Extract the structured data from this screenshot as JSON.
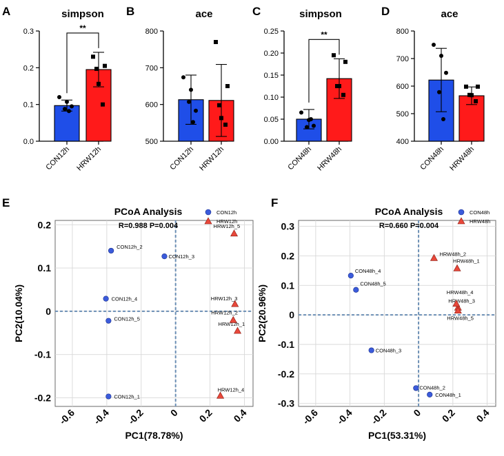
{
  "chart_data": [
    {
      "panel": "A",
      "type": "bar",
      "title": "simpson",
      "categories": [
        "CON12h",
        "HRW12h"
      ],
      "values": [
        0.097,
        0.195
      ],
      "errors": [
        0.015,
        0.047
      ],
      "points": [
        [
          0.12,
          0.107,
          0.095,
          0.088,
          0.082
        ],
        [
          0.23,
          0.205,
          0.197,
          0.156,
          0.1
        ]
      ],
      "colors": [
        "#1f4ee8",
        "#ff1a1a"
      ],
      "ylim": [
        0.0,
        0.3
      ],
      "yticks": [
        0.0,
        0.1,
        0.2,
        0.3
      ],
      "tick_labels": [
        "0.0",
        "0.1",
        "0.2",
        "0.3"
      ],
      "significance": "**"
    },
    {
      "panel": "B",
      "type": "bar",
      "title": "ace",
      "categories": [
        "CON12h",
        "HRW12h"
      ],
      "values": [
        613,
        611
      ],
      "errors": [
        67,
        98
      ],
      "points": [
        [
          674,
          640,
          583,
          607,
          552
        ],
        [
          770,
          650,
          598,
          563,
          545
        ]
      ],
      "colors": [
        "#1f4ee8",
        "#ff1a1a"
      ],
      "ylim": [
        500,
        800
      ],
      "yticks": [
        500,
        600,
        700,
        800
      ],
      "tick_labels": [
        "500",
        "600",
        "700",
        "800"
      ],
      "significance": ""
    },
    {
      "panel": "C",
      "type": "bar",
      "title": "simpson",
      "categories": [
        "CON48h",
        "HRW48h"
      ],
      "values": [
        0.05,
        0.142
      ],
      "errors": [
        0.022,
        0.045
      ],
      "points": [
        [
          0.065,
          0.048,
          0.035,
          0.032,
          0.05
        ],
        [
          0.195,
          0.18,
          0.125,
          0.125,
          0.105
        ]
      ],
      "colors": [
        "#1f4ee8",
        "#ff1a1a"
      ],
      "ylim": [
        0.0,
        0.25
      ],
      "yticks": [
        0.0,
        0.05,
        0.1,
        0.15,
        0.2,
        0.25
      ],
      "tick_labels": [
        "0.00",
        "0.05",
        "0.10",
        "0.15",
        "0.20",
        "0.25"
      ],
      "significance": "**"
    },
    {
      "panel": "D",
      "type": "bar",
      "title": "ace",
      "categories": [
        "CON48h",
        "HRW48h"
      ],
      "values": [
        622,
        565
      ],
      "errors": [
        115,
        32
      ],
      "points": [
        [
          750,
          710,
          648,
          578,
          480
        ],
        [
          598,
          598,
          568,
          567,
          545
        ]
      ],
      "colors": [
        "#1f4ee8",
        "#ff1a1a"
      ],
      "ylim": [
        400,
        800
      ],
      "yticks": [
        400,
        500,
        600,
        700,
        800
      ],
      "tick_labels": [
        "400",
        "500",
        "600",
        "700",
        "800"
      ],
      "significance": ""
    },
    {
      "panel": "E",
      "type": "scatter",
      "title": "PCoA Analysis",
      "stats": "R=0.988      P=0.004",
      "xlabel": "PC1(78.78%)",
      "ylabel": "PC2(10.04%)",
      "xlim": [
        -0.7,
        0.45
      ],
      "ylim": [
        -0.22,
        0.21
      ],
      "xticks": [
        -0.6,
        -0.4,
        -0.2,
        0,
        0.2,
        0.4
      ],
      "xtick_labels": [
        "-0.6",
        "-0.4",
        "-0.2",
        "0",
        "0.2",
        "0.4"
      ],
      "yticks": [
        -0.2,
        -0.1,
        0,
        0.1,
        0.2
      ],
      "ytick_labels": [
        "-0.2",
        "-0.1",
        "0",
        "0.1",
        "0.2"
      ],
      "series": [
        {
          "name": "CON12h",
          "marker": "circle",
          "color": "#3b5bdb",
          "points": [
            {
              "label": "CON12h_1",
              "x": -0.39,
              "y": -0.197
            },
            {
              "label": "CON12h_2",
              "x": -0.375,
              "y": 0.14
            },
            {
              "label": "CON12h_3",
              "x": -0.065,
              "y": 0.127
            },
            {
              "label": "CON12h_4",
              "x": -0.405,
              "y": 0.029
            },
            {
              "label": "CON12h_5",
              "x": -0.39,
              "y": -0.022
            }
          ]
        },
        {
          "name": "HRW12h",
          "marker": "triangle",
          "color": "#e8483b",
          "points": [
            {
              "label": "HRW12h_1",
              "x": 0.36,
              "y": -0.045
            },
            {
              "label": "HRW12h_2",
              "x": 0.335,
              "y": -0.02
            },
            {
              "label": "HRW12h_3",
              "x": 0.345,
              "y": 0.017
            },
            {
              "label": "HRW12h_4",
              "x": 0.26,
              "y": -0.195
            },
            {
              "label": "HRW12h_5",
              "x": 0.34,
              "y": 0.18
            }
          ]
        }
      ]
    },
    {
      "panel": "F",
      "type": "scatter",
      "title": "PCoA Analysis",
      "stats": "R=0.660      P=0.004",
      "xlabel": "PC1(53.31%)",
      "ylabel": "PC2(20.96%)",
      "xlim": [
        -0.7,
        0.45
      ],
      "ylim": [
        -0.31,
        0.32
      ],
      "xticks": [
        -0.6,
        -0.4,
        -0.2,
        0,
        0.2,
        0.4
      ],
      "xtick_labels": [
        "-0.6",
        "-0.4",
        "-0.2",
        "0",
        "0.2",
        "0.4"
      ],
      "yticks": [
        -0.3,
        -0.2,
        -0.1,
        0,
        0.1,
        0.2,
        0.3
      ],
      "ytick_labels": [
        "-0.3",
        "-0.2",
        "-0.1",
        "0",
        "0.1",
        "0.2",
        "0.3"
      ],
      "series": [
        {
          "name": "CON48h",
          "marker": "circle",
          "color": "#3b5bdb",
          "points": [
            {
              "label": "CON48h_1",
              "x": 0.065,
              "y": -0.27
            },
            {
              "label": "CON48h_2",
              "x": -0.015,
              "y": -0.248
            },
            {
              "label": "CON48h_3",
              "x": -0.275,
              "y": -0.12
            },
            {
              "label": "CON48h_4",
              "x": -0.395,
              "y": 0.133
            },
            {
              "label": "CON48h_5",
              "x": -0.365,
              "y": 0.085
            }
          ]
        },
        {
          "name": "HRW48h",
          "marker": "triangle",
          "color": "#e8483b",
          "points": [
            {
              "label": "HRW48h_1",
              "x": 0.225,
              "y": 0.158
            },
            {
              "label": "HRW48h_2",
              "x": 0.09,
              "y": 0.193
            },
            {
              "label": "HRW48h_3",
              "x": 0.23,
              "y": 0.025
            },
            {
              "label": "HRW48h_4",
              "x": 0.22,
              "y": 0.038
            },
            {
              "label": "HRW48h_5",
              "x": 0.23,
              "y": 0.015
            }
          ]
        }
      ]
    }
  ]
}
